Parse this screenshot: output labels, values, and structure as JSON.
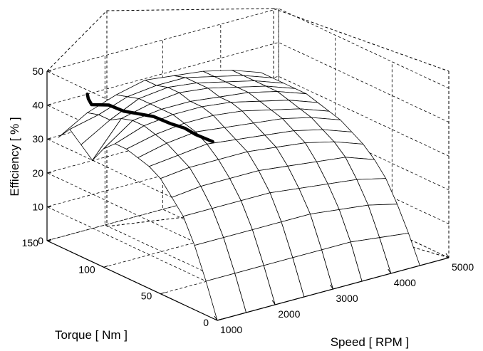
{
  "chart_data": {
    "type": "surface",
    "title": "",
    "xlabel": "Speed [ RPM ]",
    "ylabel": "Torque [ Nm ]",
    "zlabel": "Efficiency [ % ]",
    "xlim": [
      1000,
      5000
    ],
    "ylim": [
      0,
      150
    ],
    "zlim": [
      0,
      50
    ],
    "grid": true,
    "x_ticks": [
      1000,
      2000,
      3000,
      4000,
      5000
    ],
    "y_ticks": [
      0,
      50,
      100,
      150
    ],
    "z_ticks": [
      0,
      10,
      20,
      30,
      40,
      50
    ],
    "surface": {
      "speed_rpm": [
        1000,
        1500,
        2000,
        2500,
        3000,
        3500,
        4000,
        4500
      ],
      "torque_nm": [
        0,
        10,
        20,
        30,
        40,
        50,
        60,
        70,
        80,
        90,
        100,
        110,
        120,
        130,
        140
      ],
      "efficiency_pct_by_torque_row": [
        [
          0,
          0,
          0,
          0,
          0,
          0,
          0,
          0
        ],
        [
          10,
          10,
          10,
          10,
          10,
          10,
          9,
          8
        ],
        [
          19,
          19,
          19,
          19,
          19,
          18,
          17,
          15
        ],
        [
          26,
          26,
          26,
          26,
          25,
          24,
          23,
          21
        ],
        [
          30,
          31,
          31,
          31,
          30,
          29,
          28,
          25
        ],
        [
          34,
          35,
          35,
          35,
          34,
          33,
          31,
          28
        ],
        [
          36,
          37,
          38,
          37,
          36,
          35,
          33,
          30
        ],
        [
          37,
          39,
          40,
          39,
          38,
          37,
          35,
          32
        ],
        [
          38,
          40,
          41,
          41,
          40,
          38,
          36,
          33
        ],
        [
          38,
          41,
          42,
          42,
          41,
          39,
          37,
          34
        ],
        [
          35,
          41,
          42,
          42,
          41,
          40,
          38,
          35
        ],
        [
          30,
          40,
          42,
          43,
          42,
          40,
          38,
          35
        ],
        [
          33,
          38,
          42,
          43,
          42,
          40,
          38,
          35
        ],
        [
          36,
          38,
          41,
          42,
          42,
          40,
          38,
          35
        ],
        [
          32,
          37,
          40,
          42,
          41,
          40,
          38,
          35
        ]
      ]
    },
    "optimal_line": {
      "speed_rpm": [
        2000,
        1900,
        1850,
        1800,
        1700,
        1600,
        1500,
        1400,
        1300,
        1400,
        1500
      ],
      "torque_nm": [
        55,
        65,
        72,
        82,
        92,
        100,
        108,
        116,
        126,
        134,
        140
      ],
      "efficiency_pct": [
        39,
        40,
        41,
        41,
        42,
        42,
        42,
        43,
        42,
        42,
        42
      ]
    }
  }
}
